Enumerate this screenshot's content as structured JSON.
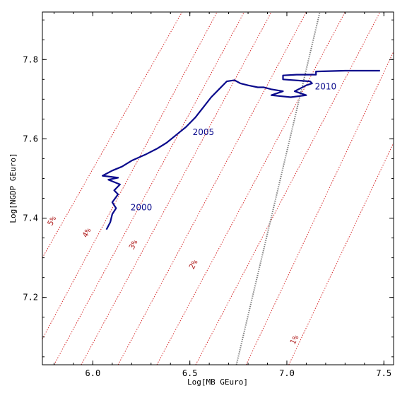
{
  "chart_data": {
    "type": "line",
    "title": "",
    "xlabel": "Log[MB GEuro]",
    "ylabel": "Log[NGDP GEuro]",
    "xlim": [
      5.74,
      7.55
    ],
    "ylim": [
      7.03,
      7.92
    ],
    "x_ticks": [
      6.0,
      6.5,
      7.0,
      7.5
    ],
    "y_ticks": [
      7.2,
      7.4,
      7.6,
      7.8
    ],
    "x_tick_labels": [
      "6.0",
      "6.5",
      "7.0",
      "7.5"
    ],
    "y_tick_labels": [
      "7.2",
      "7.4",
      "7.6",
      "7.8"
    ],
    "grid": false,
    "colors": {
      "series": "#0a0a8c",
      "reference_lines": "#d62728",
      "steep_line": "#808080"
    },
    "series": [
      {
        "values": [
          [
            6.07,
            7.371
          ],
          [
            6.09,
            7.39
          ],
          [
            6.1,
            7.41
          ],
          [
            6.12,
            7.425
          ],
          [
            6.1,
            7.44
          ],
          [
            6.13,
            7.46
          ],
          [
            6.11,
            7.47
          ],
          [
            6.14,
            7.485
          ],
          [
            6.08,
            7.497
          ],
          [
            6.13,
            7.502
          ],
          [
            6.05,
            7.507
          ],
          [
            6.1,
            7.52
          ],
          [
            6.15,
            7.53
          ],
          [
            6.2,
            7.545
          ],
          [
            6.27,
            7.56
          ],
          [
            6.33,
            7.575
          ],
          [
            6.38,
            7.59
          ],
          [
            6.43,
            7.61
          ],
          [
            6.48,
            7.63
          ],
          [
            6.53,
            7.655
          ],
          [
            6.57,
            7.68
          ],
          [
            6.61,
            7.705
          ],
          [
            6.65,
            7.725
          ],
          [
            6.69,
            7.745
          ],
          [
            6.73,
            7.748
          ],
          [
            6.76,
            7.74
          ],
          [
            6.8,
            7.735
          ],
          [
            6.85,
            7.73
          ],
          [
            6.88,
            7.73
          ],
          [
            6.92,
            7.725
          ],
          [
            6.98,
            7.72
          ],
          [
            6.92,
            7.71
          ],
          [
            7.02,
            7.705
          ],
          [
            7.1,
            7.71
          ],
          [
            7.04,
            7.72
          ],
          [
            7.1,
            7.735
          ],
          [
            7.13,
            7.74
          ],
          [
            7.12,
            7.745
          ],
          [
            6.98,
            7.75
          ],
          [
            6.98,
            7.76
          ],
          [
            7.05,
            7.762
          ],
          [
            7.15,
            7.762
          ],
          [
            7.15,
            7.77
          ],
          [
            7.3,
            7.772
          ],
          [
            7.45,
            7.772
          ],
          [
            7.48,
            7.772
          ]
        ]
      }
    ],
    "reference_lines": [
      {
        "label": "1%",
        "points": [
          [
            7.01,
            7.03
          ],
          [
            7.55,
            7.59
          ]
        ]
      },
      {
        "label": "2%",
        "points": [
          [
            6.79,
            7.03
          ],
          [
            7.55,
            7.82
          ]
        ]
      },
      {
        "label": "3%",
        "points": [
          [
            6.53,
            7.03
          ],
          [
            7.48,
            7.92
          ]
        ]
      },
      {
        "label": "4%",
        "points": [
          [
            6.33,
            7.03
          ],
          [
            7.3,
            7.92
          ]
        ]
      },
      {
        "label": "5%",
        "points": [
          [
            6.13,
            7.03
          ],
          [
            7.1,
            7.92
          ]
        ]
      },
      {
        "label": "",
        "points": [
          [
            5.94,
            7.03
          ],
          [
            6.92,
            7.92
          ]
        ]
      },
      {
        "label": "",
        "points": [
          [
            5.8,
            7.03
          ],
          [
            6.78,
            7.92
          ]
        ]
      },
      {
        "label": "",
        "points": [
          [
            5.74,
            7.095
          ],
          [
            6.64,
            7.92
          ]
        ]
      },
      {
        "label": "",
        "points": [
          [
            5.74,
            7.3
          ],
          [
            6.46,
            7.92
          ]
        ]
      }
    ],
    "rate_labels": [
      {
        "text": "1%",
        "at": [
          7.05,
          7.09
        ]
      },
      {
        "text": "2%",
        "at": [
          6.53,
          7.28
        ]
      },
      {
        "text": "3%",
        "at": [
          6.22,
          7.33
        ]
      },
      {
        "text": "4%",
        "at": [
          5.98,
          7.36
        ]
      },
      {
        "text": "5%",
        "at": [
          5.8,
          7.39
        ]
      }
    ],
    "steep_line": {
      "points": [
        [
          6.74,
          7.03
        ],
        [
          7.17,
          7.92
        ]
      ]
    },
    "annotations": [
      {
        "text": "2000",
        "at": [
          6.25,
          7.42
        ]
      },
      {
        "text": "2005",
        "at": [
          6.57,
          7.61
        ]
      },
      {
        "text": "2010",
        "at": [
          7.2,
          7.725
        ]
      }
    ]
  }
}
